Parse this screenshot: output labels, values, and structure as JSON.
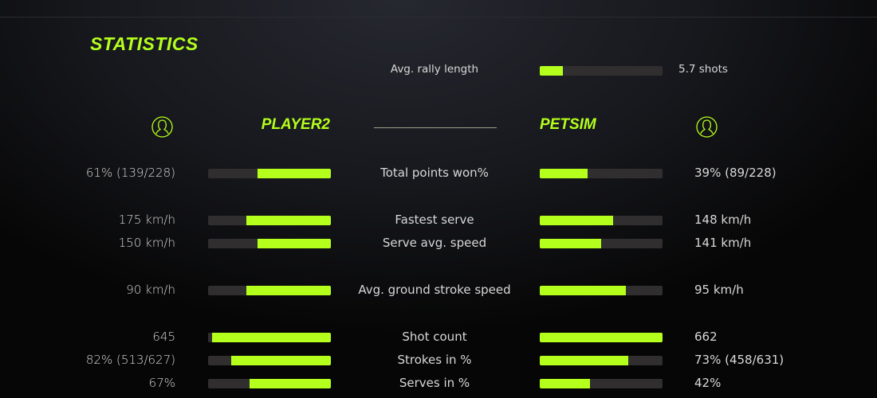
{
  "title": "STATISTICS",
  "accent": "#b4ff1c",
  "rally": {
    "label": "Avg. rally length",
    "value": "5.7 shots",
    "fraction": 0.19
  },
  "players": {
    "left": {
      "name": "PLAYER2",
      "icon": "user-circle-icon"
    },
    "right": {
      "name": "PETSIM",
      "icon": "user-circle-icon"
    }
  },
  "stats": [
    {
      "label": "Total points won%",
      "left": "61% (139/228)",
      "right": "39% (89/228)",
      "lf": 0.6,
      "rf": 0.39
    },
    {
      "label": "Fastest serve",
      "left": "175 km/h",
      "right": "148 km/h",
      "lf": 0.69,
      "rf": 0.6
    },
    {
      "label": "Serve avg. speed",
      "left": "150 km/h",
      "right": "141 km/h",
      "lf": 0.6,
      "rf": 0.5
    },
    {
      "label": "Avg. ground stroke speed",
      "left": "90 km/h",
      "right": "95 km/h",
      "lf": 0.69,
      "rf": 0.7
    },
    {
      "label": "Shot count",
      "left": "645",
      "right": "662",
      "lf": 0.97,
      "rf": 1.0
    },
    {
      "label": "Strokes in %",
      "left": "82% (513/627)",
      "right": "73% (458/631)",
      "lf": 0.81,
      "rf": 0.72
    },
    {
      "label": "Serves in %",
      "left": "67%",
      "right": "42%",
      "lf": 0.66,
      "rf": 0.41
    }
  ]
}
